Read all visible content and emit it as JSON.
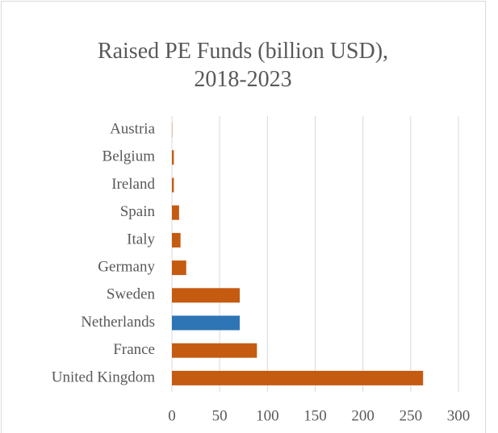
{
  "chart_data": {
    "type": "bar",
    "orientation": "horizontal",
    "title": "Raised PE Funds (billion USD), 2018-2023",
    "categories": [
      "Austria",
      "Belgium",
      "Ireland",
      "Spain",
      "Italy",
      "Germany",
      "Sweden",
      "Netherlands",
      "France",
      "United Kingdom"
    ],
    "values": [
      0.3,
      2,
      2,
      7.5,
      9,
      15,
      71,
      71,
      89,
      263
    ],
    "colors": [
      "#c55a11",
      "#c55a11",
      "#c55a11",
      "#c55a11",
      "#c55a11",
      "#c55a11",
      "#c55a11",
      "#2e75b6",
      "#c55a11",
      "#c55a11"
    ],
    "xlim": [
      0,
      300
    ],
    "xticks": [
      0,
      50,
      100,
      150,
      200,
      250,
      300
    ],
    "grid": true
  }
}
